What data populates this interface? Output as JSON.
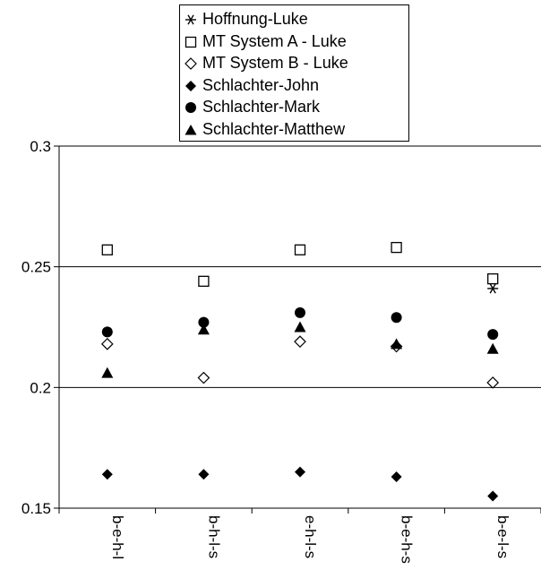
{
  "chart_data": {
    "type": "scatter",
    "title": "",
    "xlabel": "",
    "ylabel": "",
    "categories": [
      "b-e-h-l",
      "b-h-l-s",
      "e-h-l-s",
      "b-e-h-s",
      "b-e-l-s"
    ],
    "ylim": [
      0.15,
      0.3
    ],
    "yticks": [
      "0.15",
      "0.2",
      "0.25",
      "0.3"
    ],
    "grid": "horizontal lines at 0.2, 0.25, 0.3",
    "legend_position": "top",
    "series": [
      {
        "name": "Hoffnung-Luke",
        "marker": "asterisk",
        "values": [
          null,
          null,
          null,
          null,
          0.241
        ]
      },
      {
        "name": "MT System A - Luke",
        "marker": "open-square",
        "values": [
          0.257,
          0.244,
          0.257,
          0.258,
          0.245
        ]
      },
      {
        "name": "MT System B - Luke",
        "marker": "open-diamond",
        "values": [
          0.218,
          0.204,
          0.219,
          0.217,
          0.202
        ]
      },
      {
        "name": "Schlachter-John",
        "marker": "filled-diamond",
        "values": [
          0.164,
          0.164,
          0.165,
          0.163,
          0.155
        ]
      },
      {
        "name": "Schlachter-Mark",
        "marker": "filled-circle",
        "values": [
          0.223,
          0.227,
          0.231,
          0.229,
          0.222
        ]
      },
      {
        "name": "Schlachter-Matthew",
        "marker": "filled-triangle",
        "values": [
          0.206,
          0.224,
          0.225,
          0.218,
          0.216
        ]
      }
    ]
  }
}
